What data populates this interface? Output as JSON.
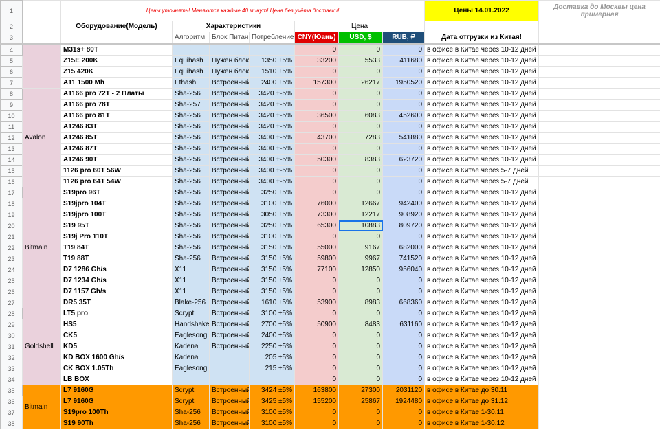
{
  "header": {
    "note": "Цены уточнять! Меняются каждые 40 минут! Цена без учёта доставки!",
    "date": "Цены 14.01.2022",
    "delivery": "Доставка до Москвы цена примерная",
    "model": "Оборудование(Модель)",
    "specs": "Характеристики",
    "price": "Цена",
    "algorithm": "Алгоритм",
    "psu": "Блок Питани",
    "power": "Потребление",
    "cny": "CNY(Юань)",
    "usd": "USD, $",
    "rub": "RUB, ₽",
    "shipping": "Дата отгрузки из Китая!"
  },
  "row_numbers": [
    1,
    2,
    3,
    4,
    5,
    6,
    7,
    8,
    9,
    10,
    11,
    12,
    13,
    14,
    15,
    16,
    17,
    18,
    19,
    20,
    21,
    22,
    23,
    24,
    25,
    26,
    27,
    28,
    29,
    30,
    31,
    32,
    33,
    34,
    35,
    36,
    37,
    38
  ],
  "groups": [
    {
      "rows": [
        [
          "M31s+ 80T",
          null,
          null,
          null,
          0,
          0,
          0,
          "в офисе в Китае через 10-12 дней"
        ],
        [
          "Z15E 200K",
          "Equihash",
          "Нужен блок",
          "1350 ±5%",
          33200,
          5533,
          411680,
          "в офисе в Китае через 10-12 дней"
        ],
        [
          "Z15 420K",
          "Equihash",
          "Нужен блок",
          "1510 ±5%",
          0,
          0,
          0,
          "в офисе в Китае через 10-12 дней"
        ],
        [
          "A11 1500 Mh",
          "Ethash",
          "Встроенный",
          "2400 ±5%",
          157300,
          26217,
          1950520,
          "в офисе в Китае через 10-12 дней"
        ]
      ]
    },
    {
      "name": "Avalon",
      "rows": [
        [
          "A1166 pro 72T - 2 Платы",
          "Sha-256",
          "Встроенный",
          "3420 +-5%",
          0,
          0,
          0,
          "в офисе в Китае через 10-12 дней"
        ],
        [
          "A1166 pro 78T",
          "Sha-257",
          "Встроенный",
          "3420 +-5%",
          0,
          0,
          0,
          "в офисе в Китае через 10-12 дней"
        ],
        [
          "A1166 pro 81T",
          "Sha-256",
          "Встроенный",
          "3420 +-5%",
          36500,
          6083,
          452600,
          "в офисе в Китае через 10-12 дней"
        ],
        [
          "A1246 83T",
          "Sha-256",
          "Встроенный",
          "3420 +-5%",
          0,
          0,
          0,
          "в офисе в Китае через 10-12 дней"
        ],
        [
          "A1246 85T",
          "Sha-256",
          "Встроенный",
          "3400 +-5%",
          43700,
          7283,
          541880,
          "в офисе в Китае через 10-12 дней"
        ],
        [
          "A1246 87T",
          "Sha-256",
          "Встроенный",
          "3400 +-5%",
          0,
          0,
          0,
          "в офисе в Китае через 10-12 дней"
        ],
        [
          "A1246 90T",
          "Sha-256",
          "Встроенный",
          "3400 +-5%",
          50300,
          8383,
          623720,
          "в офисе в Китае через 10-12 дней"
        ],
        [
          "1126 pro 60T 56W",
          "Sha-256",
          "Встроенный",
          "3400 +-5%",
          0,
          0,
          0,
          "в офисе в Китае через 5-7 дней"
        ],
        [
          "1126 pro 64T 54W",
          "Sha-256",
          "Встроенный",
          "3400 +-5%",
          0,
          0,
          0,
          "в офисе в Китае через 5-7 дней"
        ]
      ]
    },
    {
      "name": "Bitmain",
      "rows": [
        [
          "S19pro 96T",
          "Sha-256",
          "Встроенный",
          "3250 ±5%",
          0,
          0,
          0,
          "в офисе в Китае через 10-12 дней"
        ],
        [
          "S19jpro 104T",
          "Sha-256",
          "Встроенный",
          "3100 ±5%",
          76000,
          12667,
          942400,
          "в офисе в Китае через 10-12 дней"
        ],
        [
          "S19jpro 100T",
          "Sha-256",
          "Встроенный",
          "3050 ±5%",
          73300,
          12217,
          908920,
          "в офисе в Китае через 10-12 дней"
        ],
        [
          "S19 95T",
          "Sha-256",
          "Встроенный",
          "3250 ±5%",
          65300,
          10883,
          809720,
          "в офисе в Китае через 10-12 дней"
        ],
        [
          "S19j Pro 110T",
          "Sha-256",
          "Встроенный",
          "3100 ±5%",
          0,
          0,
          0,
          "в офисе в Китае через 10-12 дней"
        ],
        [
          "T19 84T",
          "Sha-256",
          "Встроенный",
          "3150 ±5%",
          55000,
          9167,
          682000,
          "в офисе в Китае через 10-12 дней"
        ],
        [
          "T19 88T",
          "Sha-256",
          "Встроенный",
          "3150 ±5%",
          59800,
          9967,
          741520,
          "в офисе в Китае через 10-12 дней"
        ],
        [
          "D7 1286 Gh/s",
          "X11",
          "Встроенный",
          "3150 ±5%",
          77100,
          12850,
          956040,
          "в офисе в Китае через 10-12 дней"
        ],
        [
          "D7 1234 Gh/s",
          "X11",
          "Встроенный",
          "3150 ±5%",
          0,
          0,
          0,
          "в офисе в Китае через 10-12 дней"
        ],
        [
          "D7 1157 Gh/s",
          "X11",
          "Встроенный",
          "3150 ±5%",
          0,
          0,
          0,
          "в офисе в Китае через 10-12 дней"
        ],
        [
          "DR5 35T",
          "Blake-256",
          "Встроенный",
          "1610 ±5%",
          53900,
          8983,
          668360,
          "в офисе в Китае через 10-12 дней"
        ]
      ]
    },
    {
      "name": "Goldshell",
      "rows": [
        [
          "LT5 pro",
          "Scrypt",
          "Встроенный",
          "3100 ±5%",
          0,
          0,
          0,
          "в офисе в Китае через 10-12 дней"
        ],
        [
          "HS5",
          "Handshake",
          "Встроенный",
          "2700 ±5%",
          50900,
          8483,
          631160,
          "в офисе в Китае через 10-12 дней"
        ],
        [
          "CK5",
          "Eaglesong",
          "Встроенный",
          "2400 ±5%",
          0,
          0,
          0,
          "в офисе в Китае через 10-12 дней"
        ],
        [
          "KD5",
          "Kadena",
          "Встроенный",
          "2250 ±5%",
          0,
          0,
          0,
          "в офисе в Китае через 10-12 дней"
        ],
        [
          "KD BOX 1600 Gh/s",
          "Kadena",
          null,
          "205 ±5%",
          0,
          0,
          0,
          "в офисе в Китае через 10-12 дней"
        ],
        [
          "CK BOX 1.05Th",
          "Eaglesong",
          null,
          "215 ±5%",
          0,
          0,
          0,
          "в офисе в Китае через 10-12 дней"
        ],
        [
          "LB BOX",
          null,
          null,
          null,
          0,
          0,
          0,
          "в офисе в Китае через 10-12 дней"
        ]
      ]
    },
    {
      "name": "Bitmain",
      "color": "#ff9900",
      "rows": [
        [
          "L7 9160G",
          "Scrypt",
          "Встроенный",
          "3424 ±5%",
          163800,
          27300,
          2031120,
          "в офисе в Китае до 30.11"
        ],
        [
          "L7 9160G",
          "Scrypt",
          "Встроенный",
          "3425 ±5%",
          155200,
          25867,
          1924480,
          "в офисе в Китае до 31.12"
        ],
        [
          "S19pro 100Th",
          "Sha-256",
          "Встроенный",
          "3100 ±5%",
          0,
          0,
          0,
          "в офисе в Китае 1-30.11"
        ],
        [
          "S19 90Th",
          "Sha-256",
          "Встроенный",
          "3100 ±5%",
          0,
          0,
          0,
          "в офисе в Китае 1-30.12"
        ]
      ]
    }
  ]
}
